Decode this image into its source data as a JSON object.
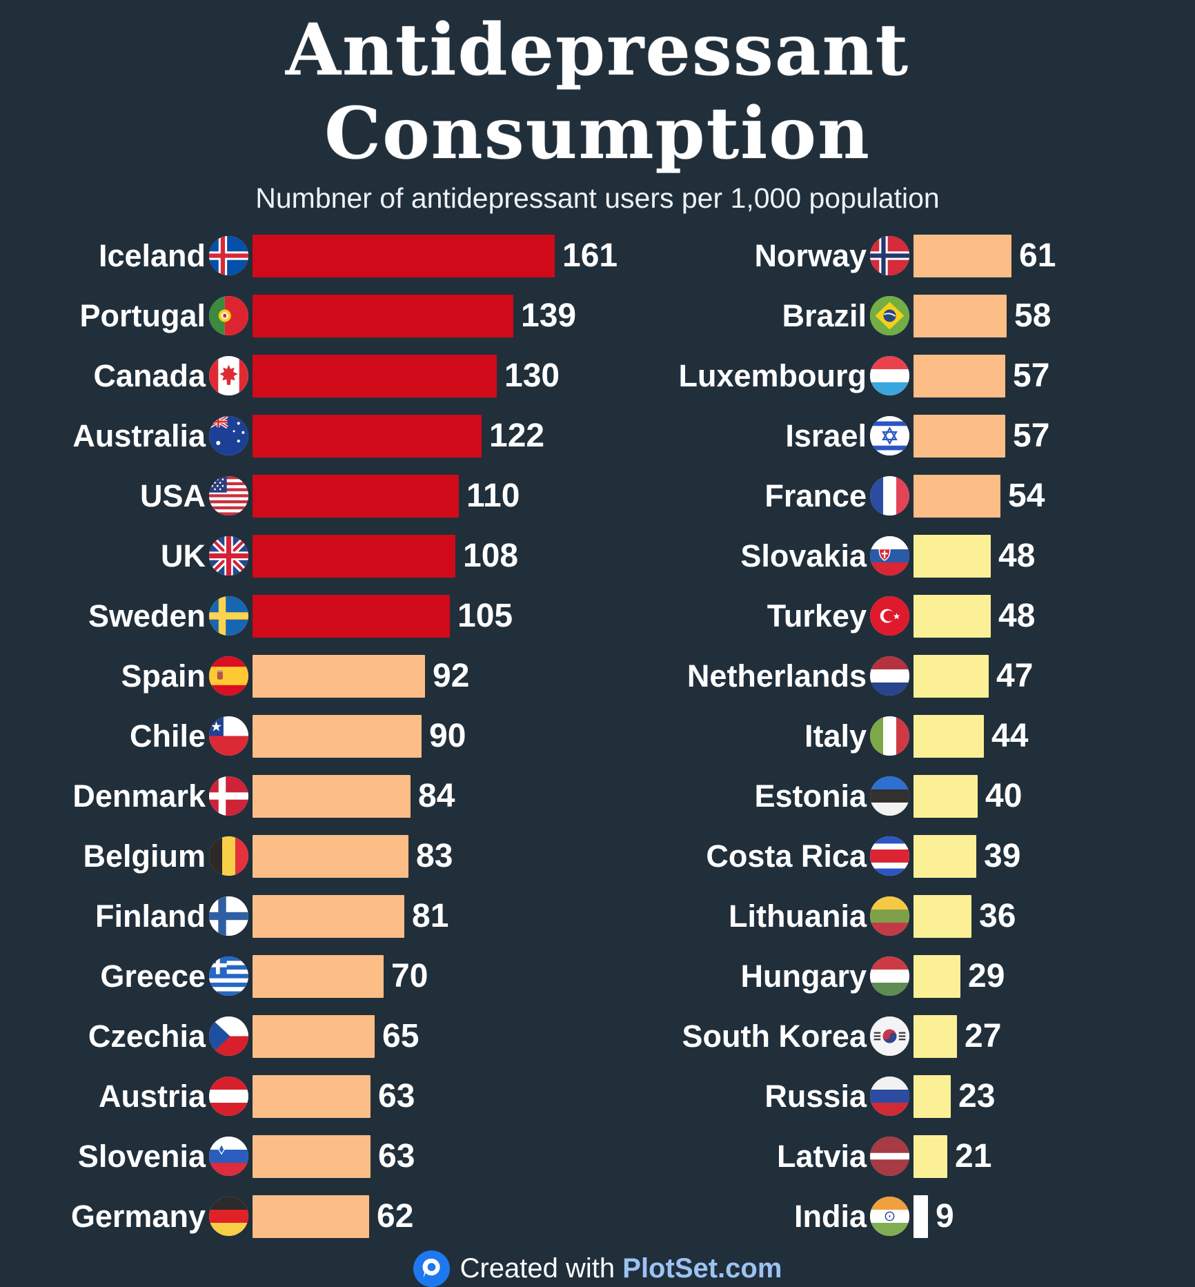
{
  "title": "Antidepressant Consumption",
  "subtitle": "Numbner of antidepressant users per 1,000 population",
  "footer": {
    "created_with": "Created with",
    "brand": "PlotSet.com",
    "logo_icon": "plotset-pin-icon"
  },
  "palette": {
    "background": "#212F3B",
    "bar_red": "#D10A1A",
    "bar_peach": "#FCBD87",
    "bar_yellow": "#FBF096",
    "bar_white": "#FFFFFF",
    "text": "#FFFFFF",
    "brand_blue": "#9DC3F3",
    "logo_blue": "#1E78F0"
  },
  "chart_data": {
    "type": "bar",
    "orientation": "horizontal",
    "title": "Antidepressant Consumption",
    "subtitle": "Numbner of antidepressant users per 1,000 population",
    "value_unit": "antidepressant users per 1,000 population",
    "grid": false,
    "legend": false,
    "columns": [
      {
        "rows": [
          {
            "country": "Iceland",
            "value": 161,
            "color": "bar_red",
            "flag": "iceland"
          },
          {
            "country": "Portugal",
            "value": 139,
            "color": "bar_red",
            "flag": "portugal"
          },
          {
            "country": "Canada",
            "value": 130,
            "color": "bar_red",
            "flag": "canada"
          },
          {
            "country": "Australia",
            "value": 122,
            "color": "bar_red",
            "flag": "australia"
          },
          {
            "country": "USA",
            "value": 110,
            "color": "bar_red",
            "flag": "usa"
          },
          {
            "country": "UK",
            "value": 108,
            "color": "bar_red",
            "flag": "uk"
          },
          {
            "country": "Sweden",
            "value": 105,
            "color": "bar_red",
            "flag": "sweden"
          },
          {
            "country": "Spain",
            "value": 92,
            "color": "bar_peach",
            "flag": "spain"
          },
          {
            "country": "Chile",
            "value": 90,
            "color": "bar_peach",
            "flag": "chile"
          },
          {
            "country": "Denmark",
            "value": 84,
            "color": "bar_peach",
            "flag": "denmark"
          },
          {
            "country": "Belgium",
            "value": 83,
            "color": "bar_peach",
            "flag": "belgium"
          },
          {
            "country": "Finland",
            "value": 81,
            "color": "bar_peach",
            "flag": "finland"
          },
          {
            "country": "Greece",
            "value": 70,
            "color": "bar_peach",
            "flag": "greece"
          },
          {
            "country": "Czechia",
            "value": 65,
            "color": "bar_peach",
            "flag": "czechia"
          },
          {
            "country": "Austria",
            "value": 63,
            "color": "bar_peach",
            "flag": "austria"
          },
          {
            "country": "Slovenia",
            "value": 63,
            "color": "bar_peach",
            "flag": "slovenia"
          },
          {
            "country": "Germany",
            "value": 62,
            "color": "bar_peach",
            "flag": "germany"
          }
        ]
      },
      {
        "rows": [
          {
            "country": "Norway",
            "value": 61,
            "color": "bar_peach",
            "flag": "norway"
          },
          {
            "country": "Brazil",
            "value": 58,
            "color": "bar_peach",
            "flag": "brazil"
          },
          {
            "country": "Luxembourg",
            "value": 57,
            "color": "bar_peach",
            "flag": "luxembourg"
          },
          {
            "country": "Israel",
            "value": 57,
            "color": "bar_peach",
            "flag": "israel"
          },
          {
            "country": "France",
            "value": 54,
            "color": "bar_peach",
            "flag": "france"
          },
          {
            "country": "Slovakia",
            "value": 48,
            "color": "bar_yellow",
            "flag": "slovakia"
          },
          {
            "country": "Turkey",
            "value": 48,
            "color": "bar_yellow",
            "flag": "turkey"
          },
          {
            "country": "Netherlands",
            "value": 47,
            "color": "bar_yellow",
            "flag": "netherlands"
          },
          {
            "country": "Italy",
            "value": 44,
            "color": "bar_yellow",
            "flag": "italy"
          },
          {
            "country": "Estonia",
            "value": 40,
            "color": "bar_yellow",
            "flag": "estonia"
          },
          {
            "country": "Costa Rica",
            "value": 39,
            "color": "bar_yellow",
            "flag": "costa_rica"
          },
          {
            "country": "Lithuania",
            "value": 36,
            "color": "bar_yellow",
            "flag": "lithuania"
          },
          {
            "country": "Hungary",
            "value": 29,
            "color": "bar_yellow",
            "flag": "hungary"
          },
          {
            "country": "South Korea",
            "value": 27,
            "color": "bar_yellow",
            "flag": "south_korea"
          },
          {
            "country": "Russia",
            "value": 23,
            "color": "bar_yellow",
            "flag": "russia"
          },
          {
            "country": "Latvia",
            "value": 21,
            "color": "bar_yellow",
            "flag": "latvia"
          },
          {
            "country": "India",
            "value": 9,
            "color": "bar_white",
            "flag": "india"
          }
        ]
      }
    ]
  }
}
